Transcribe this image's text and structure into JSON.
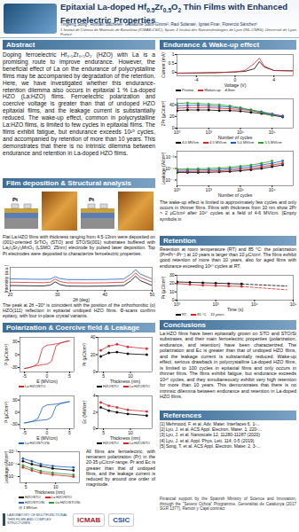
{
  "header": {
    "title": [
      {
        "text": "Epitaxial La-doped Hf"
      },
      {
        "text": "0.5",
        "sub": true
      },
      {
        "text": "Zr"
      },
      {
        "text": "0.5",
        "sub": true
      },
      {
        "text": "O"
      },
      {
        "text": "2",
        "sub": true
      },
      {
        "text": " Thin Films with Enhanced Ferroelectric Properties"
      }
    ],
    "authors": "Tingfeng Song¹, Romain Bachelet², Guillaume Saint-Girons², Raul Solanas¹, Ignasi Fina¹, Florencio Sánchez¹",
    "affiliation": "1 Institut de Ciència de Materials de Barcelona (ICMAB-CSIC), Spain; 2 Institut des Nanotechnologies de Lyon (INL-CNRS), Université de Lyon, France"
  },
  "sections": {
    "abstract": {
      "heading": "Abstract",
      "text": "Doping ferroelectric Hf₀.₅Zr₀.₅O₂ (HZO) with La is a promising route to improve endurance. However, the beneficial effect of La on the endurance of polycrystalline films may be accompanied by degradation of the retention. Here, we have investigated whether this endurance-retention dilemma also occurs in epitaxial 1 % La-doped HZO (La:HZO) films. Ferroelectric polarization and coercive voltage is greater than that of undoped HZO epitaxial films, and the leakage current is substantially reduced. The wake-up effect, common in polycrystalline La:HZO films, is limited to few cycles in epitaxial films. The films exhibit fatigue, but endurance exceeds 10¹⁰ cycles, and accompanied by retention of more than 10 years. This demonstrates that there is no intrinsic dilemma between endurance and retention in La-doped HZO films."
    },
    "film": {
      "heading": "Film deposition & Structural analysis",
      "image_labels": [
        "Pt",
        "Pt"
      ],
      "text": "Flat La:HZO films with thickness ranging from 4.5-13nm were deposited on (001)-oriented SrTiO₃ (STO) and STO/Si(001) substrates buffered with La₂/₃Sr₁/₃MnO₃ (LSMO, 25nm) electrode by pulsed laser deposition. Top Pt electrodes were deposited to characterize ferroelectric properties.",
      "xrd_text": "The peak at 2θ ~30° is coincident with the position of the orthorhombic (o) HZO(111) reflection in epitaxial undoped HZO films. Φ-scans confirm epitaxy, with four in-plane crystal variants."
    },
    "polarization": {
      "heading": "Polarization & Coercive field & Leakage",
      "text": "All films are ferroelectric, with remanent polarization (Pr) in the 20-35 μC/cm² range. Pr and Ec is greater than that of undoped films, and the leakage current is reduced by around one order of magnitude."
    },
    "endurance": {
      "heading": "Endurance & Wake-up effect",
      "text": "The wake-up effect is limited to approximately few cycles and only occurs in thinner films. Films with thickness from 10 nm show 2Pr > 2 μC/cm² after 10¹⁰ cycles at a field of 4-6 MV/cm. (Empty symbols in"
    },
    "retention": {
      "heading": "Retention",
      "text": "Retention at room temperature (RT) and 85 °C: the polarization (Pr=Pr⁺-Pr⁻) at 10 years is larger than 10 μC/cm². The films exhibit good retention of more than 10 years, also for aged films with endurance exceeding 10¹⁰ cycles at RT."
    },
    "conclusions": {
      "heading": "Conclusions",
      "text": "La:HZO films have been epitaxially grown on STO and STO/Si substrates, and their main ferroelectric properties (polarization, endurance, and retention) have been characterized. The polarization and Ec is greater than that of undoped HZO films, and the leakage current is substantially reduced. Wake-up effect, serious drawback in polycrystalline La-doped HZO films, is limited to 100 cycles in epitaxial films and only occurs in thinner films. The films exhibit fatigue, but endurance exceeds 10¹⁰ cycles, and they simultaneously exhibit very high retention for more than 10 years. This demonstrates that there is no intrinsic dilemma between endurance and retention in La-doped HZO films."
    },
    "references": {
      "heading": "References",
      "items": [
        "[1] Mehmood, F. et al. Adv. Mater. Interfaces 6, 1-...",
        "[2] Lyu, J. et al. ACS Appl. Electron. Mater. 1, 220-...",
        "[3] Lyu, J. et al. Nanoscale 12, 11280-11287 (2020)",
        "[4] Lyu, J. et al. Appl. Phys. Lett. 114, 0-5 (2019)",
        "[5] Song, T. et al. ACS Appl. Electron. Mater. 2, 3-..."
      ]
    }
  },
  "footer": {
    "logos": [
      "LABORATORY OF MULTIFUNCTIONAL THIN FILMS AND COMPLEX STRUCTURES",
      "ICMAB",
      "CSIC"
    ],
    "funding": "Financial support by the Spanish Ministry of Science and Innovation, through the \"Severo Ochoa\" Programme, Generalitat de Catalunya (2017 SGR 1377), Ramón y Cajal contract"
  },
  "chart_data": [
    {
      "type": "line",
      "x_label": "2θ (deg)",
      "y_label": "Intensity (a.u.)",
      "log": "y",
      "tick_labels": "x",
      "xlim": [
        20,
        50
      ],
      "xticks": [
        20,
        30,
        40,
        50
      ],
      "ylim": [
        1,
        10000000
      ],
      "yticks": [],
      "x": [
        20,
        24,
        27,
        28.5,
        29.5,
        30.5,
        32,
        36,
        40,
        44,
        45.5,
        46.5,
        47.5,
        50
      ],
      "series": [
        {
          "color": "#000000",
          "values": [
            30,
            25,
            22,
            40,
            400,
            60,
            20,
            18,
            20,
            30,
            800,
            20000,
            900,
            30
          ]
        },
        {
          "color": "#d62728",
          "values": [
            300,
            250,
            220,
            300,
            3000,
            500,
            200,
            180,
            200,
            300,
            8000,
            200000,
            9000,
            300
          ]
        },
        {
          "color": "#1f5fbf",
          "values": [
            3000,
            2500,
            2200,
            2600,
            15000,
            4000,
            2000,
            1800,
            2000,
            3000,
            80000,
            2000000,
            90000,
            3000
          ]
        }
      ]
    },
    {
      "type": "line",
      "x_label": "E (MV/cm)",
      "y_label": "P (μC/cm²)",
      "legend": "bottom",
      "xlim": [
        -6,
        6
      ],
      "xticks": [
        -5,
        0,
        5
      ],
      "ylim": [
        -40,
        40
      ],
      "yticks": [
        -30,
        0,
        30
      ],
      "x": [
        -5,
        -4,
        -3,
        -2,
        -1,
        0,
        1,
        2,
        3,
        4,
        5,
        4,
        3,
        2,
        1,
        0,
        -1,
        -2,
        -3,
        -4,
        -5
      ],
      "series": [
        {
          "name": "La:HZO/STO",
          "color": "#d62728",
          "values": [
            -32,
            -30,
            -27,
            -25,
            -23,
            -22,
            -15,
            20,
            27,
            30,
            32,
            30,
            27,
            25,
            23,
            22,
            15,
            -20,
            -27,
            -30,
            -32
          ]
        }
      ]
    },
    {
      "type": "line",
      "marker": "circle",
      "x_label": "Thickness (nm)",
      "y_label": "Pr (μC/cm²)",
      "legend": "bottom",
      "xlim": [
        4,
        14
      ],
      "xticks": [
        5,
        10
      ],
      "ylim": [
        0,
        40
      ],
      "yticks": [
        0,
        20,
        40
      ],
      "x": [
        4.5,
        6,
        7.5,
        9.5,
        13
      ],
      "series": [
        {
          "name": "HZO/STO",
          "color": "#000000",
          "values": [
            18,
            22,
            23,
            21,
            20
          ]
        },
        {
          "name": "La:HZO/STO",
          "color": "#d62728",
          "values": [
            25,
            30,
            32,
            29,
            27
          ]
        }
      ]
    },
    {
      "type": "line",
      "x_label": "E (MV/cm)",
      "y_label": "P (μC/cm²)",
      "legend": "bottom",
      "xlim": [
        -6,
        6
      ],
      "xticks": [
        -5,
        0,
        5
      ],
      "ylim": [
        -40,
        40
      ],
      "yticks": [
        -30,
        0,
        30
      ],
      "x": [
        -5,
        -4,
        -3,
        -2,
        -1,
        0,
        1,
        2,
        3,
        4,
        5,
        4,
        3,
        2,
        1,
        0,
        -1,
        -2,
        -3,
        -4,
        -5
      ],
      "series": [
        {
          "name": "La:HZO/STO/Si",
          "color": "#1f5fbf",
          "values": [
            -26,
            -24,
            -22,
            -20,
            -19,
            -18,
            -12,
            15,
            21,
            24,
            26,
            24,
            22,
            20,
            19,
            18,
            12,
            -15,
            -21,
            -24,
            -26
          ]
        }
      ]
    },
    {
      "type": "line",
      "marker": "circle",
      "x_label": "Thickness (nm)",
      "y_label": "Ec (MV/cm)",
      "legend": "bottom",
      "xlim": [
        4,
        14
      ],
      "xticks": [
        5,
        10
      ],
      "ylim": [
        0,
        4
      ],
      "yticks": [
        0,
        2,
        4
      ],
      "x": [
        4.5,
        6,
        7.5,
        9.5,
        13
      ],
      "series": [
        {
          "name": "HZO/STO",
          "color": "#000000",
          "values": [
            2.6,
            2.2,
            2.0,
            1.8,
            1.6
          ]
        },
        {
          "name": "La:HZO/STO",
          "color": "#d62728",
          "values": [
            3.2,
            2.8,
            2.6,
            2.3,
            2.1
          ]
        }
      ]
    },
    {
      "type": "line",
      "marker": "circle",
      "log": "y",
      "x_label": "Thickness (nm)",
      "y_label": "Leakage (A/cm²)",
      "legend": "bottom",
      "annotations": [
        "@ 1 MV/cm"
      ],
      "xlim": [
        4,
        14
      ],
      "xticks": [
        5,
        10
      ],
      "ylim": [
        1e-08,
        0.001
      ],
      "yticks": [
        {
          "value": 1e-07,
          "label": "10⁻⁷"
        },
        {
          "value": 1e-05,
          "label": "10⁻⁵"
        },
        {
          "value": 0.001,
          "label": "10⁻³"
        }
      ],
      "x": [
        4.5,
        6,
        7.5,
        9.5,
        13
      ],
      "series": [
        {
          "name": "HZO/STO",
          "color": "#000000",
          "values": [
            3e-05,
            1e-05,
            5e-06,
            2e-06,
            1e-06
          ]
        },
        {
          "name": "La:HZO/STO",
          "color": "#d62728",
          "values": [
            3e-06,
            1e-06,
            4e-07,
            2e-07,
            1e-07
          ]
        },
        {
          "name": "HZO/STO/Si",
          "color": "#1f5fbf",
          "values": [
            8e-05,
            3e-05,
            1e-05,
            5e-06,
            3e-06
          ]
        },
        {
          "name": "La:HZO/STO/Si",
          "color": "#2ca02c",
          "values": [
            6e-06,
            2e-06,
            8e-07,
            4e-07,
            2e-07
          ]
        }
      ]
    },
    {
      "type": "line",
      "x_label": "Voltage (V)",
      "y_label": "Current (mA)",
      "legend": "bottom",
      "annotations": [
        "4.8nm"
      ],
      "xlim": [
        -6,
        6
      ],
      "xticks": [
        -4,
        0,
        4
      ],
      "ylim": [
        -0.2,
        1
      ],
      "yticks": [
        0,
        0.5,
        1
      ],
      "x": [
        -6,
        -4,
        -3,
        -2,
        -1,
        0,
        1,
        2,
        2.5,
        3,
        4,
        6
      ],
      "series": [
        {
          "name": "Pristine",
          "color": "#000000",
          "values": [
            -0.05,
            -0.04,
            -0.03,
            -0.02,
            0,
            0.02,
            0.05,
            0.2,
            0.6,
            0.3,
            0.1,
            0.08
          ]
        },
        {
          "name": "Woken-up",
          "color": "#d62728",
          "values": [
            -0.05,
            -0.04,
            -0.03,
            -0.02,
            0,
            0.02,
            0.1,
            0.5,
            0.8,
            0.35,
            0.1,
            0.08
          ]
        }
      ]
    },
    {
      "type": "line",
      "marker": "circle",
      "log": "x",
      "x_label": "Number of cycles",
      "y_label": "2Pr (μC/cm²)",
      "legend": "bottom",
      "xlim": [
        1,
        100000000000
      ],
      "xticks": [
        {
          "value": 1,
          "label": "10⁰"
        },
        {
          "value": 1000,
          "label": "10³"
        },
        {
          "value": 1000000,
          "label": "10⁶"
        },
        {
          "value": 1000000000,
          "label": "10⁹"
        }
      ],
      "ylim": [
        0,
        50
      ],
      "yticks": [
        0,
        20,
        40
      ],
      "x": [
        1,
        10,
        100,
        1000,
        10000,
        100000,
        1000000,
        10000000,
        100000000,
        1000000000,
        10000000000
      ],
      "series": [
        {
          "name": "4.0 MV/cm",
          "color": "#000000",
          "values": [
            30,
            31,
            31,
            31,
            30,
            30,
            29,
            27,
            25,
            22,
            19
          ]
        },
        {
          "name": "4.5 MV/cm",
          "color": "#d62728",
          "values": [
            34,
            35,
            35,
            35,
            34,
            33,
            32,
            30,
            27,
            24,
            21
          ]
        },
        {
          "name": "5.0 MV/cm",
          "color": "#1f5fbf",
          "values": [
            38,
            39,
            39,
            38,
            37,
            36,
            34,
            31,
            28,
            24,
            20
          ]
        },
        {
          "name": "5.5 MV/cm",
          "color": "#2ca02c",
          "values": [
            42,
            43,
            42,
            41,
            40,
            38,
            35,
            31,
            27,
            22,
            null
          ]
        }
      ]
    },
    {
      "type": "line",
      "marker": "circle",
      "log": true,
      "x_label": "Number of cycles",
      "y_label": "Leakage (A/cm²)",
      "xlim": [
        1,
        100000000000
      ],
      "xticks": [
        {
          "value": 1,
          "label": "10⁰"
        },
        {
          "value": 1000,
          "label": "10³"
        },
        {
          "value": 1000000,
          "label": "10⁶"
        },
        {
          "value": 1000000000,
          "label": "10⁹"
        }
      ],
      "ylim": [
        1e-08,
        0.01
      ],
      "yticks": [
        {
          "value": 1e-07,
          "label": "10⁻⁷"
        },
        {
          "value": 1e-05,
          "label": "10⁻⁵"
        },
        {
          "value": 0.001,
          "label": "10⁻³"
        }
      ],
      "x": [
        1,
        10,
        100,
        1000,
        10000,
        100000,
        1000000,
        10000000,
        100000000,
        1000000000,
        10000000000
      ],
      "series": [
        {
          "color": "#000000",
          "values": [
            2e-06,
            2e-06,
            2e-06,
            2.2e-06,
            2.5e-06,
            3e-06,
            4e-06,
            6e-06,
            1e-05,
            2e-05,
            4e-05
          ]
        },
        {
          "color": "#d62728",
          "values": [
            3e-06,
            3e-06,
            3.2e-06,
            3.5e-06,
            4e-06,
            5e-06,
            7e-06,
            1e-05,
            2e-05,
            4e-05,
            8e-05
          ]
        },
        {
          "color": "#1f5fbf",
          "values": [
            5e-06,
            5e-06,
            5.5e-06,
            6e-06,
            7e-06,
            9e-06,
            1.3e-05,
            2e-05,
            4e-05,
            8e-05,
            0.0002
          ]
        },
        {
          "color": "#2ca02c",
          "values": [
            8e-06,
            8e-06,
            9e-06,
            1e-05,
            1.2e-05,
            1.6e-05,
            2.5e-05,
            4e-05,
            8e-05,
            0.0002,
            null
          ]
        }
      ]
    },
    {
      "type": "line",
      "log": "x",
      "x_label": "Time (s)",
      "y_label": "Pr (μC/cm²)",
      "legend": "bottom",
      "annotations": [
        "10 years"
      ],
      "xlim": [
        1,
        1000000000
      ],
      "xticks": [
        {
          "value": 1,
          "label": "10⁰"
        },
        {
          "value": 1000,
          "label": "10³"
        },
        {
          "value": 1000000,
          "label": "10⁶"
        },
        {
          "value": 1000000000,
          "label": "10⁹"
        }
      ],
      "ylim": [
        0,
        30
      ],
      "yticks": [
        0,
        10,
        20,
        30
      ],
      "series": [
        {
          "name": "RT",
          "color": "#000000",
          "marker": "circle",
          "x": [
            1,
            10,
            100,
            1000,
            10000,
            100000
          ],
          "values": [
            22,
            21.5,
            21,
            20.5,
            20,
            19.5
          ]
        },
        {
          "name": "85 °C",
          "color": "#d62728",
          "marker": "circle",
          "x": [
            1,
            10,
            100,
            1000,
            10000,
            100000
          ],
          "values": [
            20,
            19,
            18,
            17.5,
            17,
            16.5
          ]
        },
        {
          "color": "#000000",
          "line_style": "dashed",
          "x": [
            100000,
            315360000
          ],
          "values": [
            19.5,
            17
          ]
        },
        {
          "color": "#d62728",
          "line_style": "dashed",
          "x": [
            100000,
            315360000
          ],
          "values": [
            16.5,
            12.5
          ]
        }
      ]
    }
  ]
}
